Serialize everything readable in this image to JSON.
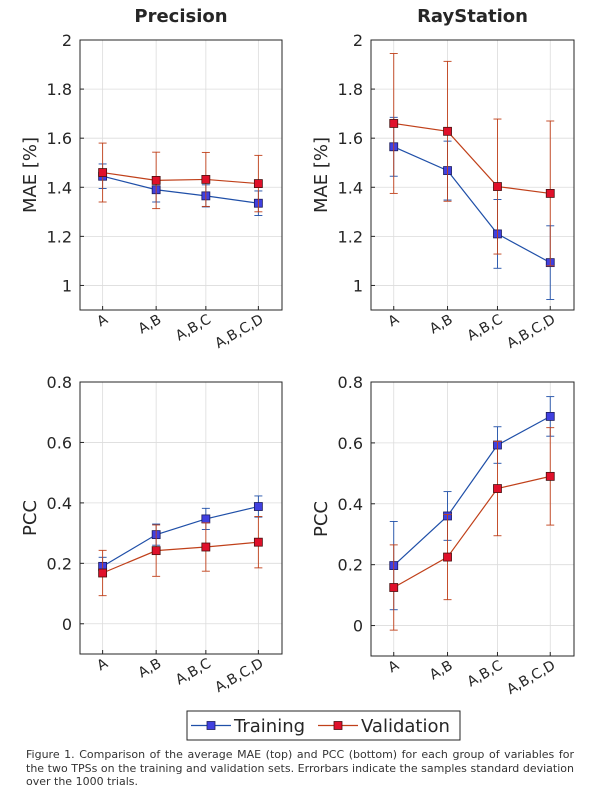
{
  "legend": {
    "training_label": "Training",
    "validation_label": "Validation"
  },
  "caption": "Figure 1. Comparison of the average MAE (top) and PCC (bottom) for each group of variables for the two TPSs on the training and validation sets. Errorbars indicate the samples standard deviation over the 1000 trials.",
  "colors": {
    "training": "#1f4fa8",
    "training_marker": "#4040e0",
    "validation": "#c0401a",
    "validation_marker": "#e0102a",
    "grid": "#dcdcdc"
  },
  "chart_data": [
    {
      "type": "line",
      "title": "Precision",
      "xlabel": "",
      "ylabel": "MAE [%]",
      "categories": [
        "A",
        "A,B",
        "A,B,C",
        "A,B,C,D"
      ],
      "ylim": [
        0.9,
        2.0
      ],
      "yticks": [
        1,
        1.2,
        1.4,
        1.6,
        1.8,
        2
      ],
      "ytick_labels": [
        "1",
        "1.2",
        "1.4",
        "1.6",
        "1.8",
        "2"
      ],
      "grid": true,
      "series": [
        {
          "name": "Training",
          "values": [
            1.445,
            1.39,
            1.365,
            1.335
          ],
          "errors": [
            0.05,
            0.05,
            0.045,
            0.05
          ]
        },
        {
          "name": "Validation",
          "values": [
            1.46,
            1.428,
            1.432,
            1.415
          ],
          "errors": [
            0.12,
            0.115,
            0.11,
            0.115
          ]
        }
      ]
    },
    {
      "type": "line",
      "title": "RayStation",
      "xlabel": "",
      "ylabel": "MAE [%]",
      "categories": [
        "A",
        "A,B",
        "A,B,C",
        "A,B,C,D"
      ],
      "ylim": [
        0.9,
        2.0
      ],
      "yticks": [
        1,
        1.2,
        1.4,
        1.6,
        1.8,
        2
      ],
      "ytick_labels": [
        "1",
        "1.2",
        "1.4",
        "1.6",
        "1.8",
        "2"
      ],
      "grid": true,
      "series": [
        {
          "name": "Training",
          "values": [
            1.565,
            1.468,
            1.21,
            1.093
          ],
          "errors": [
            0.12,
            0.12,
            0.14,
            0.15
          ]
        },
        {
          "name": "Validation",
          "values": [
            1.66,
            1.628,
            1.403,
            1.375
          ],
          "errors": [
            0.285,
            0.285,
            0.275,
            0.295
          ]
        }
      ]
    },
    {
      "type": "line",
      "title": "",
      "xlabel": "",
      "ylabel": "PCC",
      "categories": [
        "A",
        "A,B",
        "A,B,C",
        "A,B,C,D"
      ],
      "ylim": [
        -0.1,
        0.8
      ],
      "yticks": [
        0,
        0.2,
        0.4,
        0.6,
        0.8
      ],
      "ytick_labels": [
        "0",
        "0.2",
        "0.4",
        "0.6",
        "0.8"
      ],
      "grid": true,
      "series": [
        {
          "name": "Training",
          "values": [
            0.19,
            0.295,
            0.347,
            0.388
          ],
          "errors": [
            0.03,
            0.035,
            0.035,
            0.035
          ]
        },
        {
          "name": "Validation",
          "values": [
            0.168,
            0.242,
            0.254,
            0.27
          ],
          "errors": [
            0.075,
            0.085,
            0.08,
            0.085
          ]
        }
      ]
    },
    {
      "type": "line",
      "title": "",
      "xlabel": "",
      "ylabel": "PCC",
      "categories": [
        "A",
        "A,B",
        "A,B,C",
        "A,B,C,D"
      ],
      "ylim": [
        -0.1,
        0.8
      ],
      "yticks": [
        0,
        0.2,
        0.4,
        0.6,
        0.8
      ],
      "ytick_labels": [
        "0",
        "0.2",
        "0.4",
        "0.6",
        "0.8"
      ],
      "grid": true,
      "series": [
        {
          "name": "Training",
          "values": [
            0.197,
            0.36,
            0.593,
            0.687
          ],
          "errors": [
            0.145,
            0.08,
            0.06,
            0.065
          ]
        },
        {
          "name": "Validation",
          "values": [
            0.125,
            0.225,
            0.45,
            0.49
          ],
          "errors": [
            0.14,
            0.14,
            0.155,
            0.16
          ]
        }
      ]
    }
  ]
}
